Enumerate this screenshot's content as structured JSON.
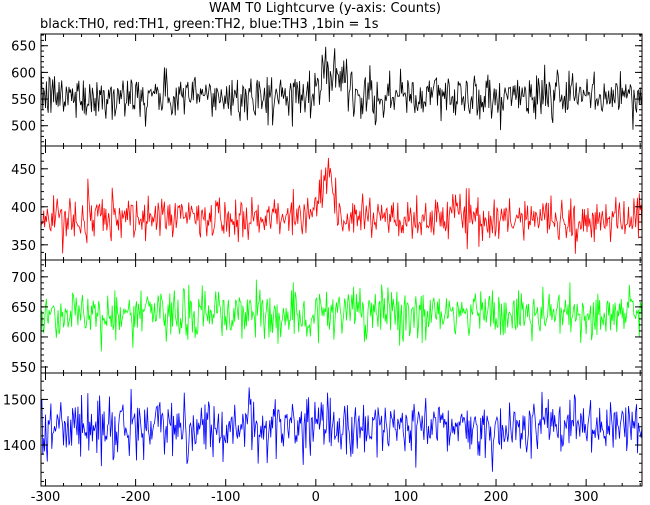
{
  "chart_data": {
    "type": "line",
    "title": "WAM T0 Lightcurve (y-axis: Counts)",
    "subtitle": "black:TH0, red:TH1, green:TH2, blue:TH3 ,1bin = 1s",
    "x_range": [
      -305,
      362
    ],
    "x_ticks": [
      -300,
      -200,
      -100,
      0,
      100,
      200,
      300
    ],
    "bin_seconds": 1,
    "panels": [
      {
        "name": "TH0",
        "color": "#000000",
        "ylim": [
          462,
          672
        ],
        "y_ticks": [
          500,
          550,
          600,
          650
        ],
        "baseline": 555,
        "noise": 22,
        "burst": {
          "center": 20,
          "width": 18,
          "amplitude": 60
        }
      },
      {
        "name": "TH1",
        "color": "#ff0000",
        "ylim": [
          330,
          480
        ],
        "y_ticks": [
          350,
          400,
          450
        ],
        "baseline": 385,
        "noise": 15,
        "burst": {
          "center": 12,
          "width": 14,
          "amplitude": 45
        }
      },
      {
        "name": "TH2",
        "color": "#00ff00",
        "ylim": [
          540,
          728
        ],
        "y_ticks": [
          550,
          600,
          650,
          700
        ],
        "baseline": 638,
        "noise": 22,
        "burst": null
      },
      {
        "name": "TH3",
        "color": "#0000ff",
        "ylim": [
          1310,
          1558
        ],
        "y_ticks": [
          1400,
          1500
        ],
        "baseline": 1440,
        "noise": 32,
        "burst": null
      }
    ]
  }
}
